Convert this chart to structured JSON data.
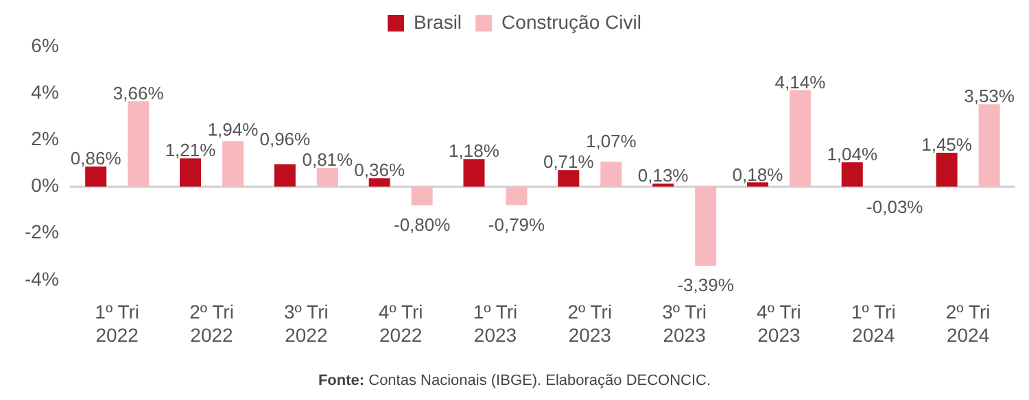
{
  "chart_data": {
    "type": "bar",
    "categories": [
      "1º Tri 2022",
      "2º Tri 2022",
      "3º Tri 2022",
      "4º Tri 2022",
      "1º Tri 2023",
      "2º Tri 2023",
      "3º Tri 2023",
      "4º Tri 2023",
      "1º Tri 2024",
      "2º Tri 2024"
    ],
    "series": [
      {
        "name": "Brasil",
        "color": "#c00d1e",
        "values": [
          0.86,
          1.21,
          0.96,
          0.36,
          1.18,
          0.71,
          0.13,
          0.18,
          1.04,
          1.45
        ],
        "value_labels": [
          "0,86%",
          "1,21%",
          "0,96%",
          "0,36%",
          "1,18%",
          "0,71%",
          "0,13%",
          "0,18%",
          "1,04%",
          "1,45%"
        ]
      },
      {
        "name": "Construção Civil",
        "color": "#f8b9be",
        "values": [
          3.66,
          1.94,
          0.81,
          -0.8,
          -0.79,
          1.07,
          -3.39,
          4.14,
          -0.03,
          3.53
        ],
        "value_labels": [
          "3,66%",
          "1,94%",
          "0,81%",
          "-0,80%",
          "-0,79%",
          "1,07%",
          "-3,39%",
          "4,14%",
          "-0,03%",
          "3,53%"
        ]
      }
    ],
    "ylim": [
      -4,
      6
    ],
    "yticks": [
      {
        "value": -4,
        "label": "-4%"
      },
      {
        "value": -2,
        "label": "-2%"
      },
      {
        "value": 0,
        "label": "0%"
      },
      {
        "value": 2,
        "label": "2%"
      },
      {
        "value": 4,
        "label": "4%"
      },
      {
        "value": 6,
        "label": "6%"
      }
    ],
    "grid": false,
    "legend": "top",
    "ref_lines": [
      {
        "axis": "y",
        "value": 0,
        "color": "#d0d0d0"
      }
    ],
    "annotations": [
      "Fonte: Contas Nacionais (IBGE). Elaboração DECONCIC."
    ]
  }
}
